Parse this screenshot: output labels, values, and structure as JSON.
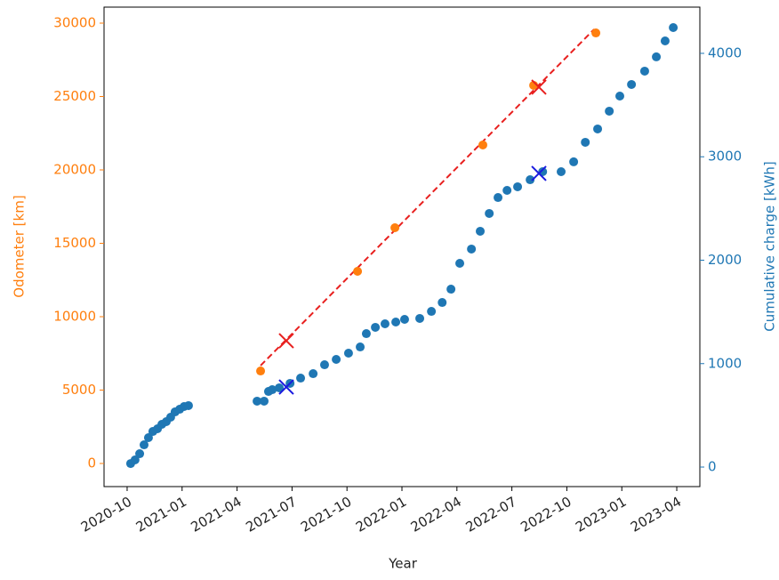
{
  "chart_data": {
    "type": "scatter",
    "xlabel": "Year",
    "ylabel": "Odometer [km]",
    "y2label": "Cumulative charge [kWh]",
    "xlim": [
      2020.645,
      2023.355
    ],
    "ylim": [
      -1576,
      31091
    ],
    "y2lim": [
      -189,
      4447
    ],
    "xticks": [
      {
        "value": 2020.75,
        "label": "2020-10"
      },
      {
        "value": 2021.0,
        "label": "2021-01"
      },
      {
        "value": 2021.25,
        "label": "2021-04"
      },
      {
        "value": 2021.5,
        "label": "2021-07"
      },
      {
        "value": 2021.75,
        "label": "2021-10"
      },
      {
        "value": 2022.0,
        "label": "2022-01"
      },
      {
        "value": 2022.25,
        "label": "2022-04"
      },
      {
        "value": 2022.5,
        "label": "2022-07"
      },
      {
        "value": 2022.75,
        "label": "2022-10"
      },
      {
        "value": 2023.0,
        "label": "2023-01"
      },
      {
        "value": 2023.25,
        "label": "2023-04"
      }
    ],
    "yticks": [
      0,
      5000,
      10000,
      15000,
      20000,
      25000,
      30000
    ],
    "y2ticks": [
      0,
      1000,
      2000,
      3000,
      4000
    ],
    "ycolor": "#ff7f0e",
    "y2color": "#1f77b4",
    "series": [
      {
        "marker": "line",
        "dashed": true,
        "color": "#e8201f",
        "x": [
          2021.357,
          2022.874
        ],
        "values": [
          6670,
          29580
        ]
      },
      {
        "marker": "o",
        "color": "#ff7f0e",
        "x": [
          2021.357,
          2021.798,
          2021.968,
          2022.368,
          2022.599,
          2022.882
        ],
        "values": [
          6300,
          13090,
          16060,
          21700,
          25760,
          29330
        ]
      },
      {
        "marker": "x",
        "color": "#e8201f",
        "x": [
          2021.474,
          2022.623
        ],
        "values": [
          8360,
          25640
        ]
      },
      {
        "marker": "o",
        "axis": "y2",
        "color": "#1f77b4",
        "x": [
          2020.766,
          2020.786,
          2020.807,
          2020.827,
          2020.847,
          2020.867,
          2020.888,
          2020.908,
          2020.928,
          2020.948,
          2020.968,
          2020.989,
          2021.009,
          2021.029,
          2021.341,
          2021.373,
          2021.393,
          2021.41,
          2021.442,
          2021.491,
          2021.539,
          2021.596,
          2021.648,
          2021.701,
          2021.757,
          2021.81,
          2021.838,
          2021.879,
          2021.923,
          2021.972,
          2022.012,
          2022.081,
          2022.134,
          2022.183,
          2022.223,
          2022.263,
          2022.316,
          2022.356,
          2022.397,
          2022.437,
          2022.478,
          2022.526,
          2022.583,
          2022.64,
          2022.724,
          2022.781,
          2022.834,
          2022.89,
          2022.943,
          2022.991,
          2023.044,
          2023.104,
          2023.157,
          2023.197,
          2023.234
        ],
        "values": [
          34,
          69,
          129,
          215,
          284,
          344,
          370,
          413,
          439,
          482,
          533,
          559,
          585,
          594,
          637,
          637,
          731,
          748,
          766,
          809,
          860,
          903,
          989,
          1041,
          1101,
          1161,
          1290,
          1351,
          1385,
          1402,
          1428,
          1437,
          1505,
          1591,
          1720,
          1970,
          2108,
          2280,
          2452,
          2606,
          2675,
          2710,
          2778,
          2856,
          2856,
          2951,
          3140,
          3269,
          3441,
          3587,
          3699,
          3828,
          3966,
          4120,
          4249
        ]
      },
      {
        "marker": "x",
        "axis": "y2",
        "color": "#1a1adf",
        "x": [
          2021.474,
          2022.623
        ],
        "values": [
          774,
          2839
        ]
      }
    ]
  }
}
